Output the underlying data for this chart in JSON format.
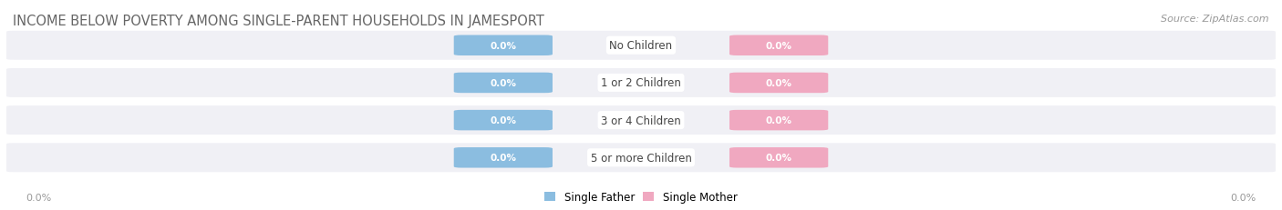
{
  "title": "INCOME BELOW POVERTY AMONG SINGLE-PARENT HOUSEHOLDS IN JAMESPORT",
  "source": "Source: ZipAtlas.com",
  "categories": [
    "No Children",
    "1 or 2 Children",
    "3 or 4 Children",
    "5 or more Children"
  ],
  "father_values": [
    0.0,
    0.0,
    0.0,
    0.0
  ],
  "mother_values": [
    0.0,
    0.0,
    0.0,
    0.0
  ],
  "father_color": "#8bbde0",
  "mother_color": "#f0a8c0",
  "bar_bg_color": "#e8e8f0",
  "row_bg_color": "#f0f0f5",
  "axis_label_left": "0.0%",
  "axis_label_right": "0.0%",
  "legend_father": "Single Father",
  "legend_mother": "Single Mother",
  "title_fontsize": 10.5,
  "source_fontsize": 8,
  "label_fontsize": 7.5,
  "category_fontsize": 8.5,
  "background_color": "#ffffff"
}
